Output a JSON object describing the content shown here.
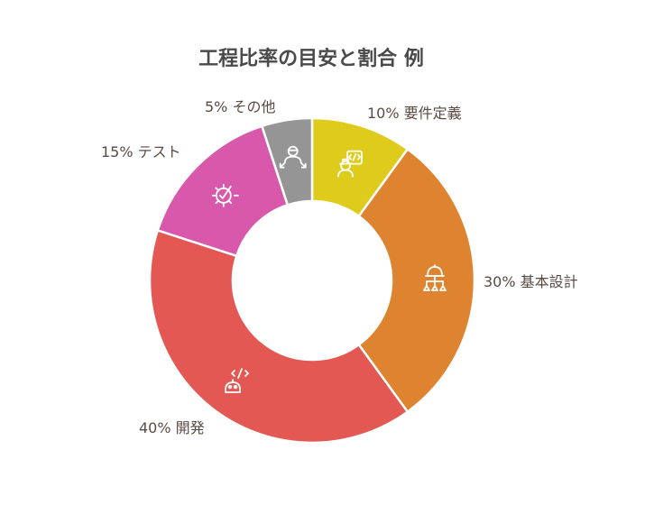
{
  "chart_data": {
    "type": "pie",
    "title": "工程比率の目安と割合 例",
    "donut": true,
    "unit": "%",
    "slices": [
      {
        "label": "要件定義",
        "display": "10% 要件定義",
        "value": 10,
        "color": "#dfcb1b",
        "icon": "engineer-code-icon"
      },
      {
        "label": "基本設計",
        "display": "30% 基本設計",
        "value": 30,
        "color": "#de8431",
        "icon": "hierarchy-structure-icon"
      },
      {
        "label": "開発",
        "display": "40% 開発",
        "value": 40,
        "color": "#e45854",
        "icon": "robot-code-icon"
      },
      {
        "label": "テスト",
        "display": "15% テスト",
        "value": 15,
        "color": "#d859ac",
        "icon": "gear-check-icon"
      },
      {
        "label": "その他",
        "display": "5% その他",
        "value": 5,
        "color": "#959595",
        "icon": "person-arrows-icon"
      }
    ]
  }
}
